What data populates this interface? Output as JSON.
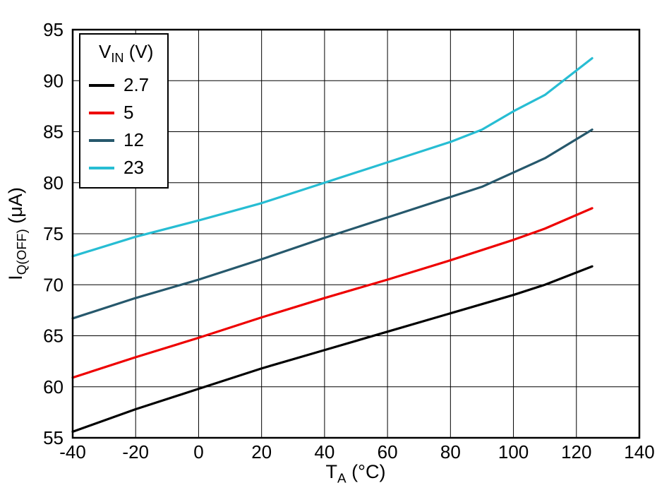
{
  "chart_data": {
    "type": "line",
    "title": "",
    "xlabel": "TA (°C)",
    "ylabel": "IQ(OFF) (μA)",
    "xlabel_parts": {
      "base": "T",
      "sub": "A",
      "rest": " (°C)"
    },
    "ylabel_parts": {
      "base": "I",
      "sub": "Q(OFF)",
      "rest": " (μA)"
    },
    "xlim": [
      -40,
      140
    ],
    "ylim": [
      55,
      95
    ],
    "xticks": [
      -40,
      -20,
      0,
      20,
      40,
      60,
      80,
      100,
      120,
      140
    ],
    "yticks": [
      55,
      60,
      65,
      70,
      75,
      80,
      85,
      90,
      95
    ],
    "grid": true,
    "legend": {
      "position": "top-left",
      "title": "VIN (V)",
      "title_parts": {
        "base": "V",
        "sub": "IN",
        "rest": " (V)"
      }
    },
    "series": [
      {
        "name": "2.7",
        "color": "#000000",
        "x": [
          -40,
          -20,
          0,
          20,
          40,
          60,
          80,
          100,
          110,
          125
        ],
        "y": [
          55.6,
          57.8,
          59.8,
          61.8,
          63.6,
          65.4,
          67.2,
          69.0,
          70.0,
          71.8
        ]
      },
      {
        "name": "5",
        "color": "#ee0000",
        "x": [
          -40,
          -20,
          0,
          20,
          40,
          60,
          80,
          100,
          110,
          125
        ],
        "y": [
          60.9,
          62.9,
          64.8,
          66.8,
          68.7,
          70.5,
          72.4,
          74.4,
          75.5,
          77.5
        ]
      },
      {
        "name": "12",
        "color": "#26586c",
        "x": [
          -40,
          -20,
          0,
          20,
          40,
          60,
          80,
          90,
          100,
          110,
          125
        ],
        "y": [
          66.7,
          68.7,
          70.5,
          72.5,
          74.6,
          76.6,
          78.6,
          79.6,
          81.0,
          82.4,
          85.2
        ]
      },
      {
        "name": "23",
        "color": "#27bdd3",
        "x": [
          -40,
          -20,
          0,
          20,
          40,
          60,
          80,
          90,
          100,
          110,
          125
        ],
        "y": [
          72.8,
          74.7,
          76.3,
          78.0,
          80.0,
          82.0,
          84.0,
          85.2,
          87.0,
          88.6,
          92.2
        ]
      }
    ]
  }
}
